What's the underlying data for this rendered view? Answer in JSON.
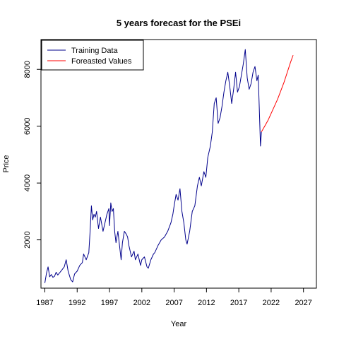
{
  "chart_data": {
    "type": "line",
    "title": "5 years forecast for the PSEi",
    "xlabel": "Year",
    "ylabel": "Price",
    "xlim": [
      1986.4,
      2029.0
    ],
    "ylim": [
      300,
      9050
    ],
    "x_ticks": [
      1987,
      1992,
      1997,
      2002,
      2007,
      2012,
      2017,
      2022,
      2027
    ],
    "y_ticks": [
      2000,
      4000,
      6000,
      8000
    ],
    "legend": {
      "position": "top-left",
      "entries": [
        "Training Data",
        "Foreasted Values"
      ]
    },
    "grid": false,
    "colors": {
      "training": "#00008B",
      "forecast": "#FF0000"
    },
    "series": [
      {
        "name": "Training Data",
        "color": "#00008B",
        "points": [
          [
            1987.0,
            480
          ],
          [
            1987.25,
            820
          ],
          [
            1987.5,
            1050
          ],
          [
            1987.75,
            700
          ],
          [
            1988.0,
            780
          ],
          [
            1988.25,
            680
          ],
          [
            1988.5,
            720
          ],
          [
            1988.75,
            860
          ],
          [
            1989.0,
            760
          ],
          [
            1989.5,
            900
          ],
          [
            1990.0,
            1050
          ],
          [
            1990.3,
            1300
          ],
          [
            1990.6,
            900
          ],
          [
            1991.0,
            600
          ],
          [
            1991.3,
            520
          ],
          [
            1991.6,
            800
          ],
          [
            1992.0,
            900
          ],
          [
            1992.4,
            1100
          ],
          [
            1992.8,
            1200
          ],
          [
            1993.0,
            1500
          ],
          [
            1993.4,
            1300
          ],
          [
            1993.8,
            1550
          ],
          [
            1994.0,
            2300
          ],
          [
            1994.2,
            3200
          ],
          [
            1994.4,
            2700
          ],
          [
            1994.6,
            2900
          ],
          [
            1994.8,
            2800
          ],
          [
            1995.0,
            3000
          ],
          [
            1995.3,
            2400
          ],
          [
            1995.6,
            2800
          ],
          [
            1996.0,
            2300
          ],
          [
            1996.3,
            2600
          ],
          [
            1996.6,
            2900
          ],
          [
            1996.9,
            3100
          ],
          [
            1997.0,
            2500
          ],
          [
            1997.2,
            3300
          ],
          [
            1997.4,
            3000
          ],
          [
            1997.6,
            3100
          ],
          [
            1997.8,
            2300
          ],
          [
            1998.0,
            1900
          ],
          [
            1998.3,
            2300
          ],
          [
            1998.6,
            1700
          ],
          [
            1998.8,
            1300
          ],
          [
            1999.0,
            1900
          ],
          [
            1999.3,
            2300
          ],
          [
            1999.6,
            2200
          ],
          [
            1999.8,
            2100
          ],
          [
            2000.0,
            1800
          ],
          [
            2000.4,
            1400
          ],
          [
            2000.8,
            1600
          ],
          [
            2001.0,
            1300
          ],
          [
            2001.4,
            1500
          ],
          [
            2001.8,
            1100
          ],
          [
            2002.0,
            1300
          ],
          [
            2002.4,
            1400
          ],
          [
            2002.8,
            1050
          ],
          [
            2003.0,
            1000
          ],
          [
            2003.4,
            1300
          ],
          [
            2003.8,
            1500
          ],
          [
            2004.0,
            1550
          ],
          [
            2004.5,
            1800
          ],
          [
            2005.0,
            2000
          ],
          [
            2005.5,
            2100
          ],
          [
            2006.0,
            2300
          ],
          [
            2006.5,
            2600
          ],
          [
            2006.8,
            2900
          ],
          [
            2007.0,
            3200
          ],
          [
            2007.3,
            3600
          ],
          [
            2007.6,
            3400
          ],
          [
            2007.9,
            3800
          ],
          [
            2008.2,
            3000
          ],
          [
            2008.5,
            2600
          ],
          [
            2008.8,
            2000
          ],
          [
            2009.0,
            1850
          ],
          [
            2009.4,
            2300
          ],
          [
            2009.8,
            3000
          ],
          [
            2010.2,
            3200
          ],
          [
            2010.6,
            3900
          ],
          [
            2010.9,
            4200
          ],
          [
            2011.2,
            3900
          ],
          [
            2011.6,
            4400
          ],
          [
            2011.9,
            4200
          ],
          [
            2012.2,
            4900
          ],
          [
            2012.6,
            5300
          ],
          [
            2012.9,
            5800
          ],
          [
            2013.2,
            6800
          ],
          [
            2013.5,
            7000
          ],
          [
            2013.8,
            6100
          ],
          [
            2014.1,
            6300
          ],
          [
            2014.4,
            6700
          ],
          [
            2014.7,
            7200
          ],
          [
            2015.0,
            7600
          ],
          [
            2015.3,
            7900
          ],
          [
            2015.6,
            7400
          ],
          [
            2015.9,
            6800
          ],
          [
            2016.2,
            7300
          ],
          [
            2016.5,
            7900
          ],
          [
            2016.8,
            7200
          ],
          [
            2017.1,
            7400
          ],
          [
            2017.4,
            7800
          ],
          [
            2017.7,
            8200
          ],
          [
            2018.0,
            8700
          ],
          [
            2018.3,
            7700
          ],
          [
            2018.6,
            7300
          ],
          [
            2018.9,
            7500
          ],
          [
            2019.2,
            7900
          ],
          [
            2019.5,
            8100
          ],
          [
            2019.8,
            7600
          ],
          [
            2020.0,
            7800
          ],
          [
            2020.2,
            6400
          ],
          [
            2020.35,
            5300
          ],
          [
            2020.5,
            5800
          ]
        ]
      },
      {
        "name": "Foreasted Values",
        "color": "#FF0000",
        "points": [
          [
            2020.5,
            5800
          ],
          [
            2021.0,
            6000
          ],
          [
            2021.5,
            6200
          ],
          [
            2022.0,
            6450
          ],
          [
            2022.5,
            6700
          ],
          [
            2023.0,
            6950
          ],
          [
            2023.5,
            7250
          ],
          [
            2024.0,
            7550
          ],
          [
            2024.5,
            7900
          ],
          [
            2025.0,
            8250
          ],
          [
            2025.4,
            8500
          ]
        ]
      }
    ]
  }
}
